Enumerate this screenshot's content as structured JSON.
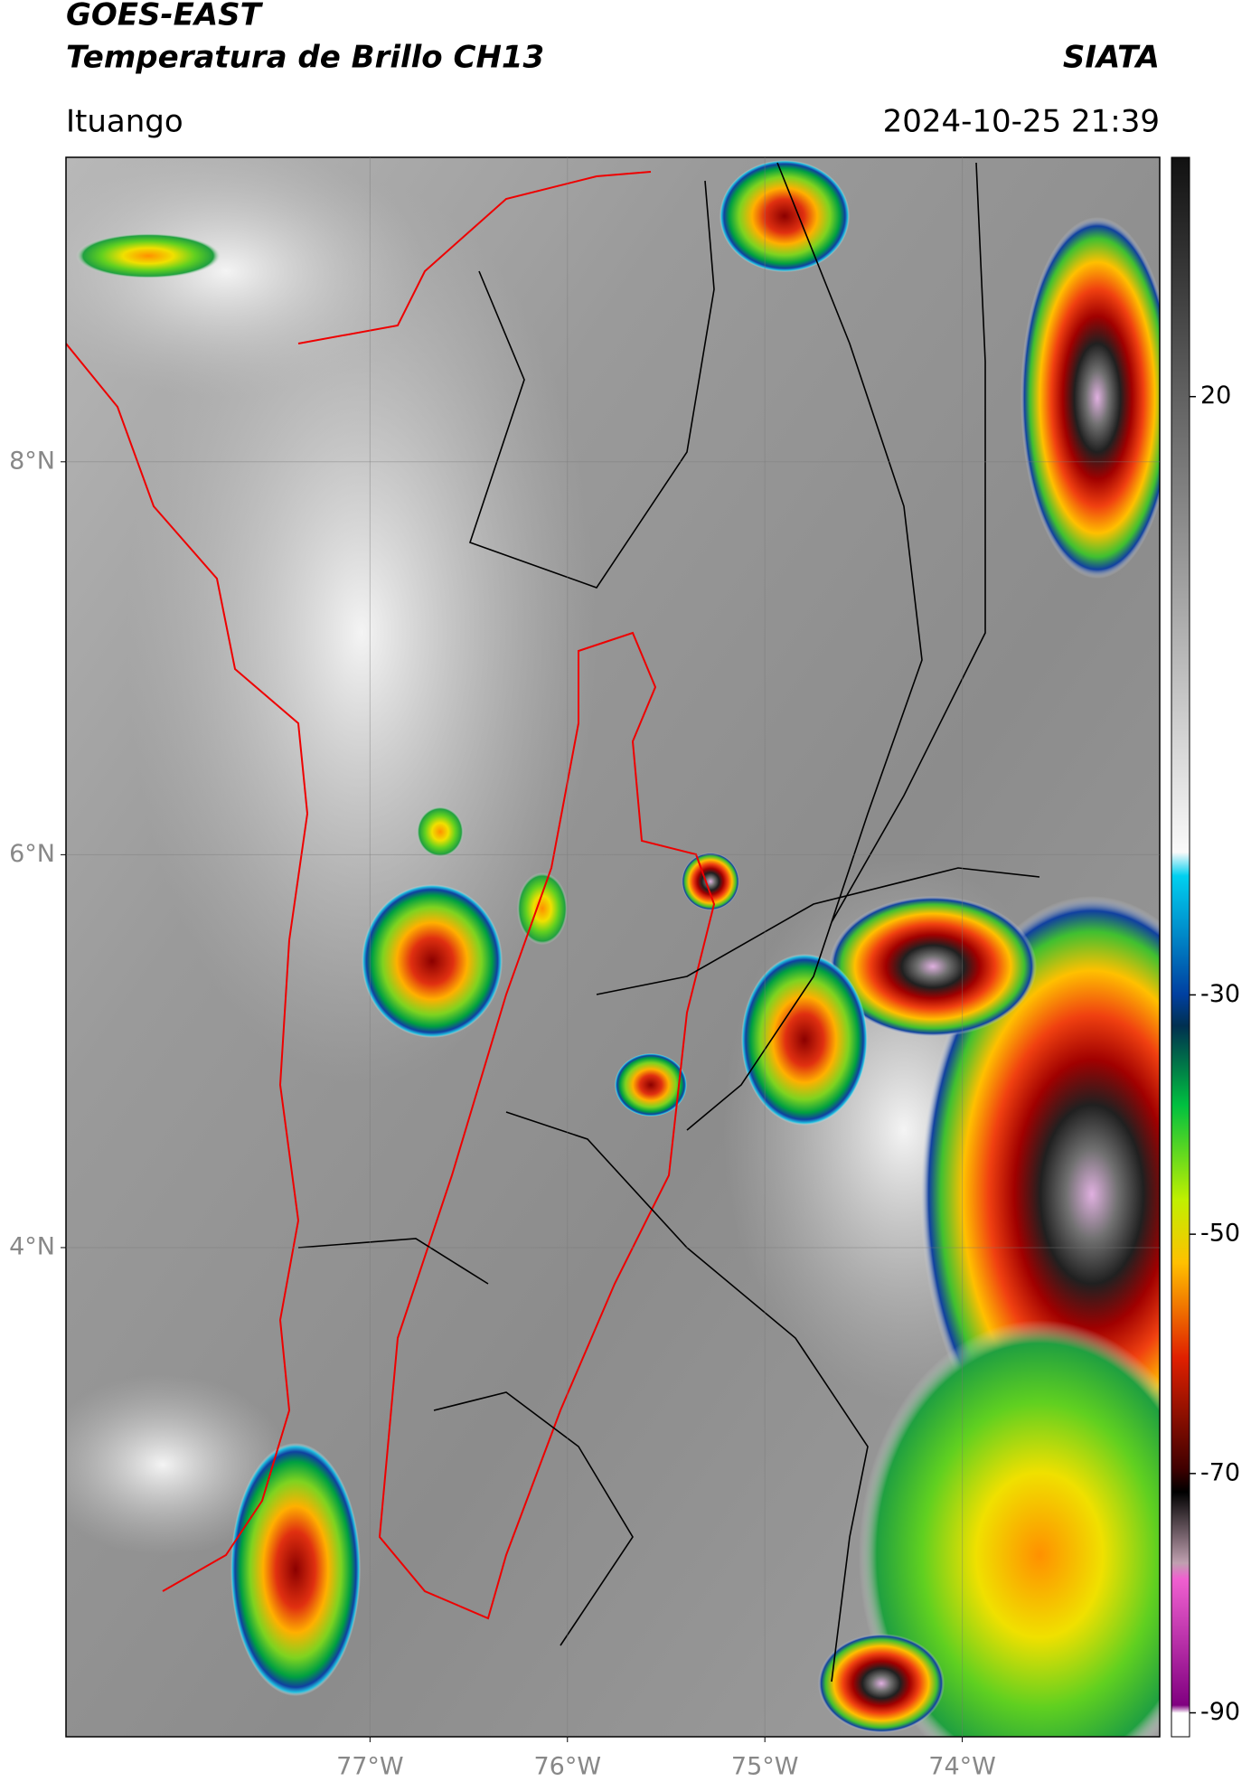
{
  "header": {
    "title": "GOES-EAST",
    "subtitle": "Temperatura de Brillo CH13",
    "source": "SIATA",
    "location": "Ituango",
    "timestamp": "2024-10-25 21:39"
  },
  "map": {
    "xlim": [
      -78.54,
      -73.0
    ],
    "ylim": [
      1.51,
      9.55
    ],
    "xticks": [
      {
        "value": -77,
        "label": "77°W"
      },
      {
        "value": -76,
        "label": "76°W"
      },
      {
        "value": -75,
        "label": "75°W"
      },
      {
        "value": -74,
        "label": "74°W"
      }
    ],
    "yticks": [
      {
        "value": 8,
        "label": "8°N"
      },
      {
        "value": 6,
        "label": "6°N"
      },
      {
        "value": 4,
        "label": "4°N"
      }
    ],
    "grid": true
  },
  "colorbar": {
    "lim": [
      -92,
      40
    ],
    "ticks": [
      20,
      -30,
      -50,
      -70,
      -90
    ]
  }
}
